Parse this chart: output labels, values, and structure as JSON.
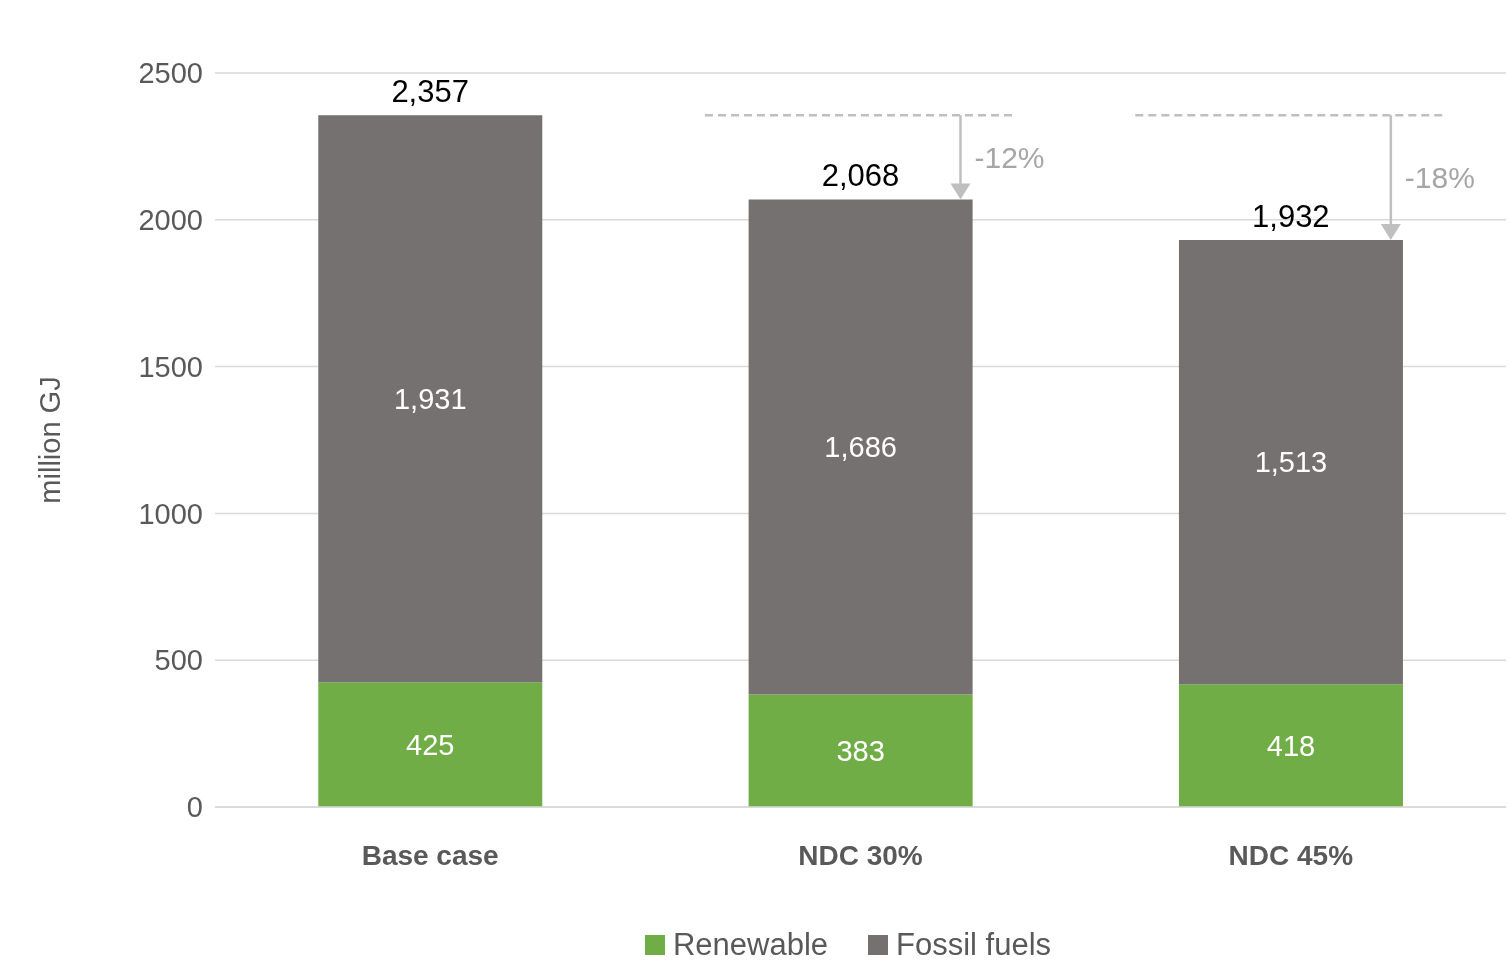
{
  "chart_data": {
    "type": "bar",
    "stacked": true,
    "categories": [
      "Base case",
      "NDC 30%",
      "NDC 45%"
    ],
    "series": [
      {
        "name": "Renewable",
        "color": "#70ad47",
        "values": [
          425,
          383,
          418
        ],
        "value_labels": [
          "425",
          "383",
          "418"
        ]
      },
      {
        "name": "Fossil fuels",
        "color": "#767171",
        "values": [
          1931,
          1686,
          1513
        ],
        "value_labels": [
          "1,931",
          "1,686",
          "1,513"
        ]
      }
    ],
    "totals": [
      "2,357",
      "2,068",
      "1,932"
    ],
    "ylabel": "million GJ",
    "ylim": [
      0,
      2500
    ],
    "yticks": [
      0,
      500,
      1000,
      1500,
      2000,
      2500
    ],
    "grid": "y",
    "legend": "bottom",
    "annotations": [
      "-12%",
      "-18%"
    ]
  }
}
